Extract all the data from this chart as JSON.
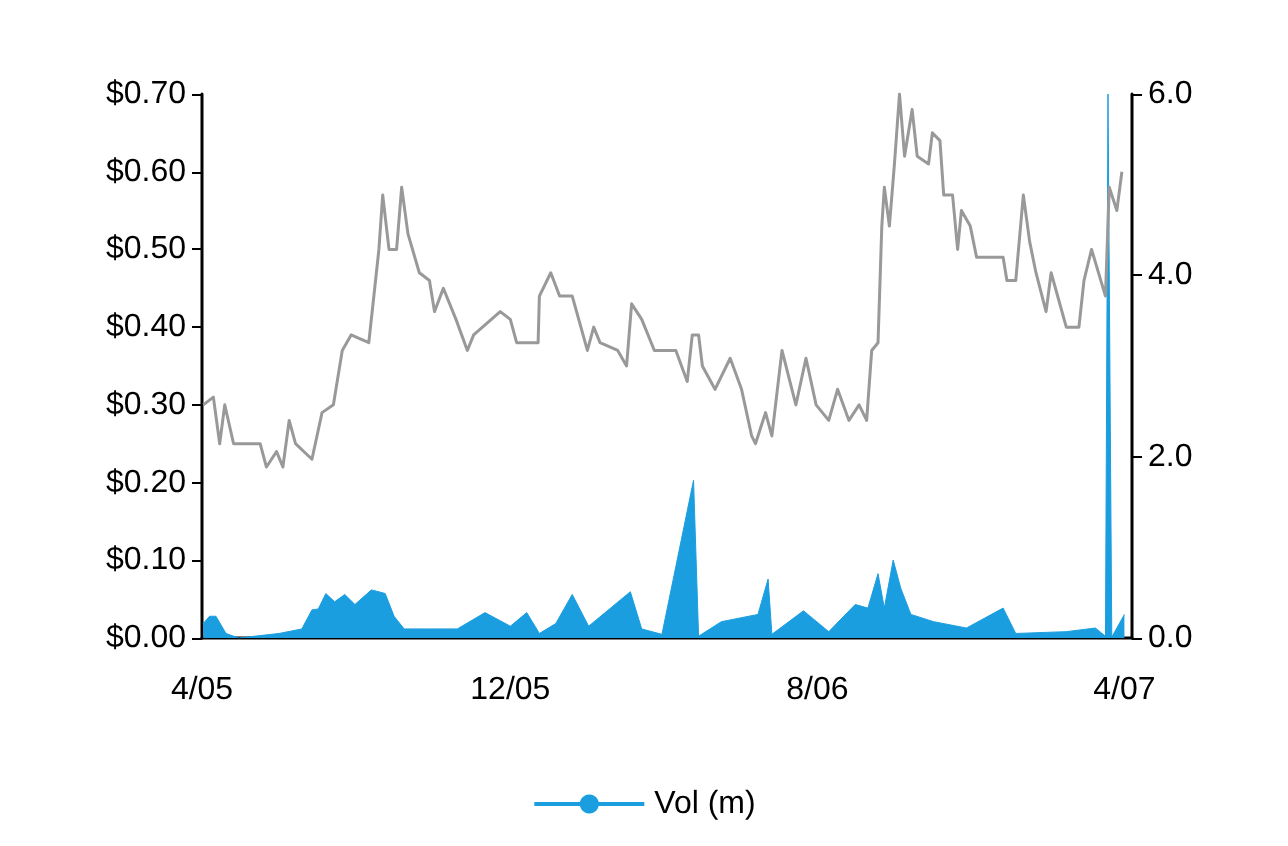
{
  "chart_data": {
    "type": "line",
    "legend": "bottom",
    "grid": false,
    "xlim": [
      "2005-04-01",
      "2007-04-07"
    ],
    "xticks": [
      {
        "value": "2005-04-01",
        "label": "4/05"
      },
      {
        "value": "2005-12-01",
        "label": "12/05"
      },
      {
        "value": "2006-08-01",
        "label": "8/06"
      },
      {
        "value": "2007-04-01",
        "label": "4/07"
      }
    ],
    "ylim": [
      0,
      0.7
    ],
    "yticks": [
      {
        "value": 0,
        "label": "$0.00"
      },
      {
        "value": 0.1,
        "label": "$0.10"
      },
      {
        "value": 0.2,
        "label": "$0.20"
      },
      {
        "value": 0.3,
        "label": "$0.30"
      },
      {
        "value": 0.4,
        "label": "$0.40"
      },
      {
        "value": 0.5,
        "label": "$0.50"
      },
      {
        "value": 0.6,
        "label": "$0.60"
      },
      {
        "value": 0.7,
        "label": "$0.70"
      }
    ],
    "y2lim": [
      0,
      6
    ],
    "y2ticks": [
      {
        "value": 0,
        "label": "0.0"
      },
      {
        "value": 2,
        "label": "2.0"
      },
      {
        "value": 4,
        "label": "4.0"
      },
      {
        "value": 6,
        "label": "6.0"
      }
    ],
    "series": [
      {
        "color": "#999999",
        "x": [
          "2005-04-02",
          "2005-04-10",
          "2005-04-15",
          "2005-04-19",
          "2005-04-26",
          "2005-05-17",
          "2005-05-22",
          "2005-05-30",
          "2005-06-04",
          "2005-06-09",
          "2005-06-14",
          "2005-06-27",
          "2005-07-05",
          "2005-07-14",
          "2005-07-21",
          "2005-07-28",
          "2005-08-11",
          "2005-08-15",
          "2005-08-19",
          "2005-08-22",
          "2005-08-27",
          "2005-09-02",
          "2005-09-06",
          "2005-09-11",
          "2005-09-20",
          "2005-09-28",
          "2005-10-02",
          "2005-10-09",
          "2005-10-19",
          "2005-10-28",
          "2005-11-02",
          "2005-11-23",
          "2005-12-01",
          "2005-12-06",
          "2005-12-23",
          "2005-12-24",
          "2006-01-02",
          "2006-01-09",
          "2006-01-19",
          "2006-01-31",
          "2006-02-05",
          "2006-02-10",
          "2006-02-24",
          "2006-03-03",
          "2006-03-07",
          "2006-03-15",
          "2006-03-25",
          "2006-04-11",
          "2006-04-20",
          "2006-04-24",
          "2006-04-29",
          "2006-05-02",
          "2006-05-12",
          "2006-05-24",
          "2006-06-02",
          "2006-06-10",
          "2006-06-13",
          "2006-06-21",
          "2006-06-26",
          "2006-07-04",
          "2006-07-15",
          "2006-07-23",
          "2006-07-31",
          "2006-08-10",
          "2006-08-17",
          "2006-08-26",
          "2006-09-03",
          "2006-09-09",
          "2006-09-13",
          "2006-09-18",
          "2006-09-21",
          "2006-09-23",
          "2006-09-27",
          "2006-10-01",
          "2006-10-05",
          "2006-10-09",
          "2006-10-15",
          "2006-10-19",
          "2006-10-28",
          "2006-10-31",
          "2006-11-06",
          "2006-11-09",
          "2006-11-16",
          "2006-11-20",
          "2006-11-23",
          "2006-11-30",
          "2006-12-05",
          "2006-12-26",
          "2006-12-29",
          "2007-01-05",
          "2007-01-11",
          "2007-01-16",
          "2007-01-21",
          "2007-01-29",
          "2007-02-02",
          "2007-02-14",
          "2007-02-24",
          "2007-02-28",
          "2007-03-06",
          "2007-03-17",
          "2007-03-20",
          "2007-03-26",
          "2007-03-30"
        ],
        "values": [
          0.3,
          0.31,
          0.25,
          0.3,
          0.25,
          0.25,
          0.22,
          0.24,
          0.22,
          0.28,
          0.25,
          0.23,
          0.29,
          0.3,
          0.37,
          0.39,
          0.38,
          0.44,
          0.5,
          0.57,
          0.5,
          0.5,
          0.58,
          0.52,
          0.47,
          0.46,
          0.42,
          0.45,
          0.41,
          0.37,
          0.39,
          0.42,
          0.41,
          0.38,
          0.38,
          0.44,
          0.47,
          0.44,
          0.44,
          0.37,
          0.4,
          0.38,
          0.37,
          0.35,
          0.43,
          0.41,
          0.37,
          0.37,
          0.33,
          0.39,
          0.39,
          0.35,
          0.32,
          0.36,
          0.32,
          0.26,
          0.25,
          0.29,
          0.26,
          0.37,
          0.3,
          0.36,
          0.3,
          0.28,
          0.32,
          0.28,
          0.3,
          0.28,
          0.37,
          0.38,
          0.53,
          0.58,
          0.53,
          0.61,
          0.7,
          0.62,
          0.68,
          0.62,
          0.61,
          0.65,
          0.64,
          0.57,
          0.57,
          0.5,
          0.55,
          0.53,
          0.49,
          0.49,
          0.46,
          0.46,
          0.57,
          0.51,
          0.47,
          0.42,
          0.47,
          0.4,
          0.4,
          0.46,
          0.5,
          0.44,
          0.58,
          0.55,
          0.6
        ]
      },
      {
        "type": "area",
        "name": "Vol (m)",
        "axis": "y2",
        "color": "#1a9ee0",
        "x": [
          "2005-04-02",
          "2005-04-07",
          "2005-04-12",
          "2005-04-20",
          "2005-04-30",
          "2005-06-01",
          "2005-06-19",
          "2005-06-27",
          "2005-07-02",
          "2005-07-08",
          "2005-07-15",
          "2005-07-23",
          "2005-07-31",
          "2005-08-13",
          "2005-08-19",
          "2005-08-24",
          "2005-08-31",
          "2005-09-08",
          "2005-09-29",
          "2005-10-20",
          "2005-11-11",
          "2005-12-01",
          "2005-12-14",
          "2005-12-24",
          "2006-01-06",
          "2006-01-19",
          "2006-02-01",
          "2006-03-06",
          "2006-03-15",
          "2006-03-31",
          "2006-04-25",
          "2006-04-29",
          "2006-05-17",
          "2006-06-15",
          "2006-06-23",
          "2006-06-26",
          "2006-07-21",
          "2006-08-10",
          "2006-08-31",
          "2006-09-10",
          "2006-09-18",
          "2006-09-23",
          "2006-09-30",
          "2006-10-06",
          "2006-10-14",
          "2006-11-01",
          "2006-11-27",
          "2006-12-26",
          "2007-01-05",
          "2007-02-14",
          "2007-03-09",
          "2007-03-17",
          "2007-03-19",
          "2007-03-22",
          "2007-04-01"
        ],
        "values": [
          0.16,
          0.24,
          0.24,
          0.05,
          0,
          0.05,
          0.1,
          0.31,
          0.32,
          0.49,
          0.4,
          0.48,
          0.37,
          0.53,
          0.51,
          0.49,
          0.24,
          0.1,
          0.1,
          0.1,
          0.28,
          0.13,
          0.28,
          0.05,
          0.16,
          0.48,
          0.13,
          0.51,
          0.1,
          0.04,
          1.74,
          0.02,
          0.18,
          0.26,
          0.65,
          0.04,
          0.3,
          0.07,
          0.37,
          0.33,
          0.71,
          0.33,
          0.86,
          0.55,
          0.26,
          0.18,
          0.11,
          0.33,
          0.05,
          0.07,
          0.11,
          0.02,
          6.0,
          0.01,
          0.26
        ]
      }
    ]
  }
}
